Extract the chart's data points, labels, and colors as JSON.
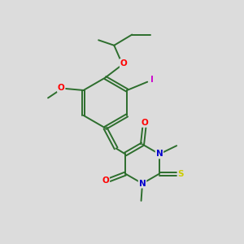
{
  "background_color": "#dcdcdc",
  "bond_color": "#2d6e2d",
  "atom_colors": {
    "O": "#ff0000",
    "N": "#0000cc",
    "S": "#cccc00",
    "I": "#cc00cc",
    "C": "#000000"
  },
  "bond_width": 1.4,
  "figsize": [
    3.0,
    3.0
  ],
  "dpi": 100,
  "xlim": [
    0,
    10
  ],
  "ylim": [
    0,
    10
  ]
}
